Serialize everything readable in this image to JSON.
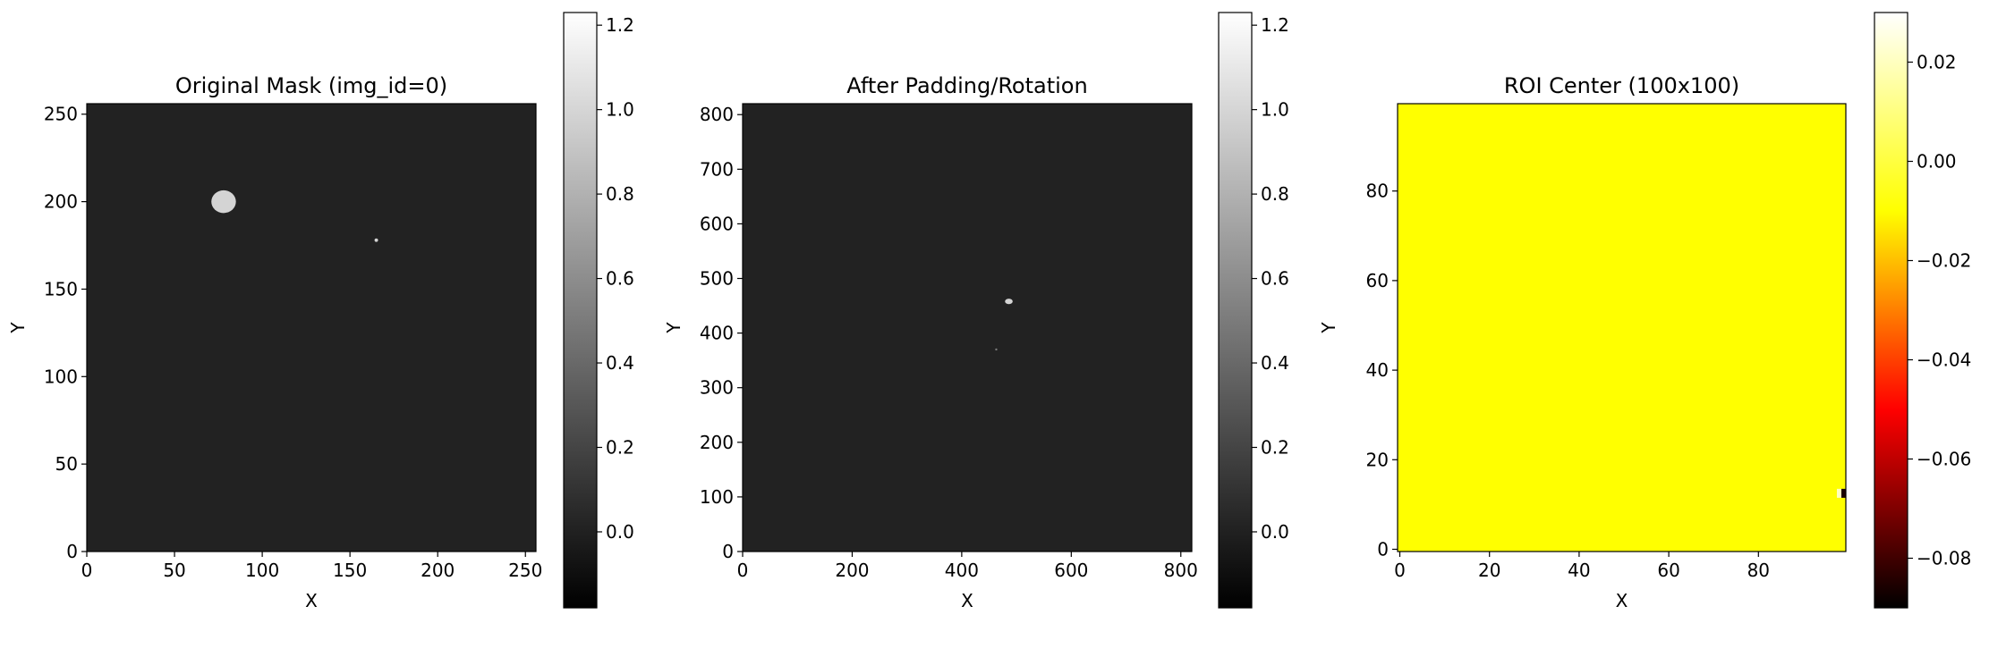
{
  "chart_data": [
    {
      "type": "heatmap",
      "title": "Original Mask (img_id=0)",
      "xlabel": "X",
      "ylabel": "Y",
      "xlim": [
        0,
        256
      ],
      "ylim": [
        0,
        256
      ],
      "xticks": [
        0,
        50,
        100,
        150,
        200,
        250
      ],
      "yticks": [
        0,
        50,
        100,
        150,
        200,
        250
      ],
      "colormap": "gray",
      "background_value": 0,
      "background_color": "#222222",
      "features": [
        {
          "name": "blob",
          "shape": "ellipse",
          "cx": 78,
          "cy": 200,
          "rx": 7,
          "ry": 6.5,
          "value": 0.85,
          "color": "#d4d4d4"
        },
        {
          "name": "dot",
          "shape": "ellipse",
          "cx": 165,
          "cy": 178,
          "rx": 1,
          "ry": 1,
          "value": 0.85,
          "color": "#d4d4d4"
        }
      ],
      "colorbar": {
        "min": -0.18,
        "max": 1.23,
        "ticks": [
          0.0,
          0.2,
          0.4,
          0.6,
          0.8,
          1.0,
          1.2
        ],
        "tick_labels": [
          "0.0",
          "0.2",
          "0.4",
          "0.6",
          "0.8",
          "1.0",
          "1.2"
        ],
        "stops": [
          "#000000",
          "#ffffff"
        ]
      }
    },
    {
      "type": "heatmap",
      "title": "After Padding/Rotation",
      "xlabel": "X",
      "ylabel": "Y",
      "xlim": [
        0,
        820
      ],
      "ylim": [
        0,
        820
      ],
      "xticks": [
        0,
        200,
        400,
        600,
        800
      ],
      "yticks": [
        0,
        100,
        200,
        300,
        400,
        500,
        600,
        700,
        800
      ],
      "colormap": "gray",
      "background_value": 0,
      "background_color": "#222222",
      "features": [
        {
          "name": "blob",
          "shape": "ellipse",
          "cx": 486,
          "cy": 458,
          "rx": 7,
          "ry": 5,
          "value": 0.85,
          "color": "#d4d4d4"
        },
        {
          "name": "dot",
          "shape": "ellipse",
          "cx": 463,
          "cy": 370,
          "rx": 1.5,
          "ry": 1.5,
          "value": 0.4,
          "color": "#7a7a7a"
        }
      ],
      "colorbar": {
        "min": -0.18,
        "max": 1.23,
        "ticks": [
          0.0,
          0.2,
          0.4,
          0.6,
          0.8,
          1.0,
          1.2
        ],
        "tick_labels": [
          "0.0",
          "0.2",
          "0.4",
          "0.6",
          "0.8",
          "1.0",
          "1.2"
        ],
        "stops": [
          "#000000",
          "#ffffff"
        ]
      }
    },
    {
      "type": "heatmap",
      "title": "ROI Center (100x100)",
      "xlabel": "X",
      "ylabel": "Y",
      "xlim": [
        -0.5,
        99.5
      ],
      "ylim": [
        -0.5,
        99.5
      ],
      "xticks": [
        0,
        20,
        40,
        60,
        80
      ],
      "yticks": [
        0,
        20,
        40,
        60,
        80
      ],
      "colormap": "hot",
      "background_value": 0.0,
      "background_color": "#ffff00",
      "features": [
        {
          "name": "edge-light-cell",
          "shape": "rect",
          "x0": 97.5,
          "y0": 11.5,
          "x1": 98.5,
          "y1": 13.5,
          "value": 0.02,
          "color": "#ffffc0"
        },
        {
          "name": "edge-dark-cell",
          "shape": "rect",
          "x0": 98.5,
          "y0": 11.5,
          "x1": 99.5,
          "y1": 13.5,
          "value": -0.09,
          "color": "#1a0000"
        }
      ],
      "colorbar": {
        "min": -0.09,
        "max": 0.03,
        "ticks": [
          -0.08,
          -0.06,
          -0.04,
          -0.02,
          0.0,
          0.02
        ],
        "tick_labels": [
          "−0.08",
          "−0.06",
          "−0.04",
          "−0.02",
          "0.00",
          "0.02"
        ],
        "stops": [
          "#000000",
          "#ff0000",
          "#ffff00",
          "#ffffff"
        ]
      }
    }
  ]
}
